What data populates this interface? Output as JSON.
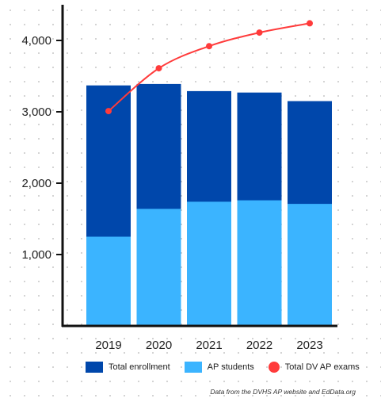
{
  "chart_data": {
    "type": "bar",
    "categories": [
      "2019",
      "2020",
      "2021",
      "2022",
      "2023"
    ],
    "series": [
      {
        "name": "Total enrollment",
        "kind": "bar",
        "color": "#0047ab",
        "values": [
          3370,
          3390,
          3290,
          3270,
          3150
        ]
      },
      {
        "name": "AP students",
        "kind": "bar",
        "color": "#3bb4ff",
        "values": [
          1250,
          1640,
          1740,
          1760,
          1710
        ]
      },
      {
        "name": "Total DV AP exams",
        "kind": "line",
        "color": "#ff3b3b",
        "values": [
          3010,
          3610,
          3920,
          4110,
          4240
        ]
      }
    ],
    "y_ticks": [
      "1,000",
      "2,000",
      "3,000",
      "4,000"
    ],
    "ylim": [
      0,
      4500
    ],
    "grid": false,
    "legend_position": "bottom"
  },
  "legend": {
    "items": [
      {
        "label": "Total enrollment",
        "color": "#0047ab",
        "shape": "square"
      },
      {
        "label": "AP students",
        "color": "#3bb4ff",
        "shape": "square"
      },
      {
        "label": "Total DV AP exams",
        "color": "#ff3b3b",
        "shape": "circle"
      }
    ]
  },
  "source_note": "Data from the DVHS AP website and EdData.org"
}
